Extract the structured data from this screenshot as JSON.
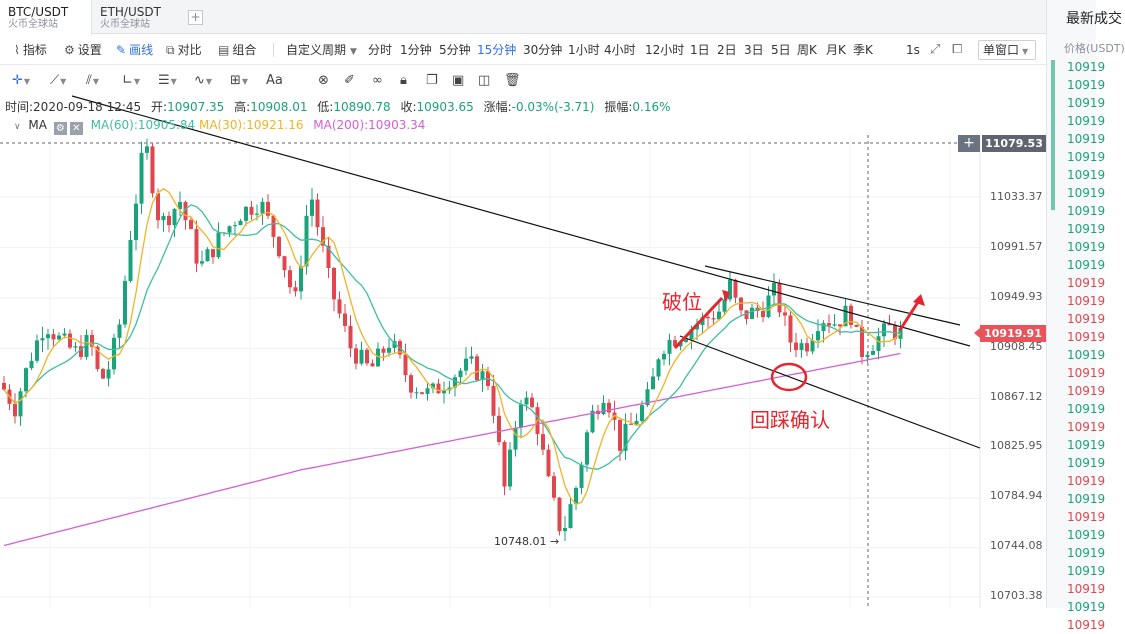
{
  "tabs": [
    {
      "pair": "BTC/USDT",
      "exchange": "火币全球站",
      "active": true
    },
    {
      "pair": "ETH/USDT",
      "exchange": "火币全球站",
      "active": false
    }
  ],
  "tab_add_label": "+",
  "toolbar": {
    "indicators": "指标",
    "settings": "设置",
    "draw": "画线",
    "compare": "对比",
    "combine": "组合",
    "custom_period": "自定义周期",
    "periods": [
      "分时",
      "1分钟",
      "5分钟",
      "15分钟",
      "30分钟",
      "1小时",
      "4小时",
      "12小时",
      "1日",
      "2日",
      "3日",
      "5日",
      "周K",
      "月K",
      "季K"
    ],
    "active_period": "15分钟",
    "refresh": "1s",
    "window_mode": "单窗口"
  },
  "draw_tools": [
    "crosshair",
    "line",
    "parallel-lines",
    "angle",
    "horizontal-lines",
    "wave",
    "grid-box",
    "text",
    "eraser-magnet",
    "brush",
    "lock",
    "copy",
    "hide",
    "delete"
  ],
  "draw_tools_text": "Aa",
  "info": {
    "time_label": "时间:",
    "time": "2020-09-18 12:45",
    "open_label": "开:",
    "open": "10907.35",
    "high_label": "高:",
    "high": "10908.01",
    "low_label": "低:",
    "low": "10890.78",
    "close_label": "收:",
    "close": "10903.65",
    "change_label": "涨幅:",
    "change": "-0.03%(-3.71)",
    "amplitude_label": "振幅:",
    "amplitude": "0.16%"
  },
  "ma": {
    "label": "MA",
    "ma60": "MA(60):10905.84",
    "ma30": "MA(30):10921.16",
    "ma200": "MA(200):10903.34"
  },
  "price_axis": [
    "11033.37",
    "10991.57",
    "10949.93",
    "10908.45",
    "10867.12",
    "10825.95",
    "10784.94",
    "10744.08",
    "10703.38"
  ],
  "price_tag_top": "11079.53",
  "price_tag_current": "10919.91",
  "low_marker": "10748.01 →",
  "annotations": {
    "breakout": "破位",
    "retest": "回踩确认"
  },
  "right_panel": {
    "title": "最新成交",
    "price_header": "价格(USDT)",
    "prices": [
      {
        "p": "10919",
        "dir": "up"
      },
      {
        "p": "10919",
        "dir": "up"
      },
      {
        "p": "10919",
        "dir": "up"
      },
      {
        "p": "10919",
        "dir": "up"
      },
      {
        "p": "10919",
        "dir": "up"
      },
      {
        "p": "10919",
        "dir": "up"
      },
      {
        "p": "10919",
        "dir": "up"
      },
      {
        "p": "10919",
        "dir": "up"
      },
      {
        "p": "10919",
        "dir": "up"
      },
      {
        "p": "10919",
        "dir": "up"
      },
      {
        "p": "10919",
        "dir": "up"
      },
      {
        "p": "10919",
        "dir": "up"
      },
      {
        "p": "10919",
        "dir": "down"
      },
      {
        "p": "10919",
        "dir": "down"
      },
      {
        "p": "10919",
        "dir": "down"
      },
      {
        "p": "10919",
        "dir": "down"
      },
      {
        "p": "10919",
        "dir": "up"
      },
      {
        "p": "10919",
        "dir": "down"
      },
      {
        "p": "10919",
        "dir": "down"
      },
      {
        "p": "10919",
        "dir": "up"
      },
      {
        "p": "10919",
        "dir": "down"
      },
      {
        "p": "10919",
        "dir": "up"
      },
      {
        "p": "10919",
        "dir": "up"
      },
      {
        "p": "10919",
        "dir": "down"
      },
      {
        "p": "10919",
        "dir": "up"
      },
      {
        "p": "10919",
        "dir": "down"
      },
      {
        "p": "10919",
        "dir": "up"
      },
      {
        "p": "10919",
        "dir": "up"
      },
      {
        "p": "10919",
        "dir": "up"
      },
      {
        "p": "10919",
        "dir": "down"
      },
      {
        "p": "10919",
        "dir": "up"
      },
      {
        "p": "10919",
        "dir": "down"
      }
    ]
  },
  "colors": {
    "up": "#1aa37a",
    "down": "#e0464e",
    "ma30": "#f0b429",
    "ma60": "#3dbf9f",
    "ma200": "#d45fd4",
    "accent": "#2f6fde",
    "trend_line": "#111111",
    "annotation": "#e5262f"
  }
}
